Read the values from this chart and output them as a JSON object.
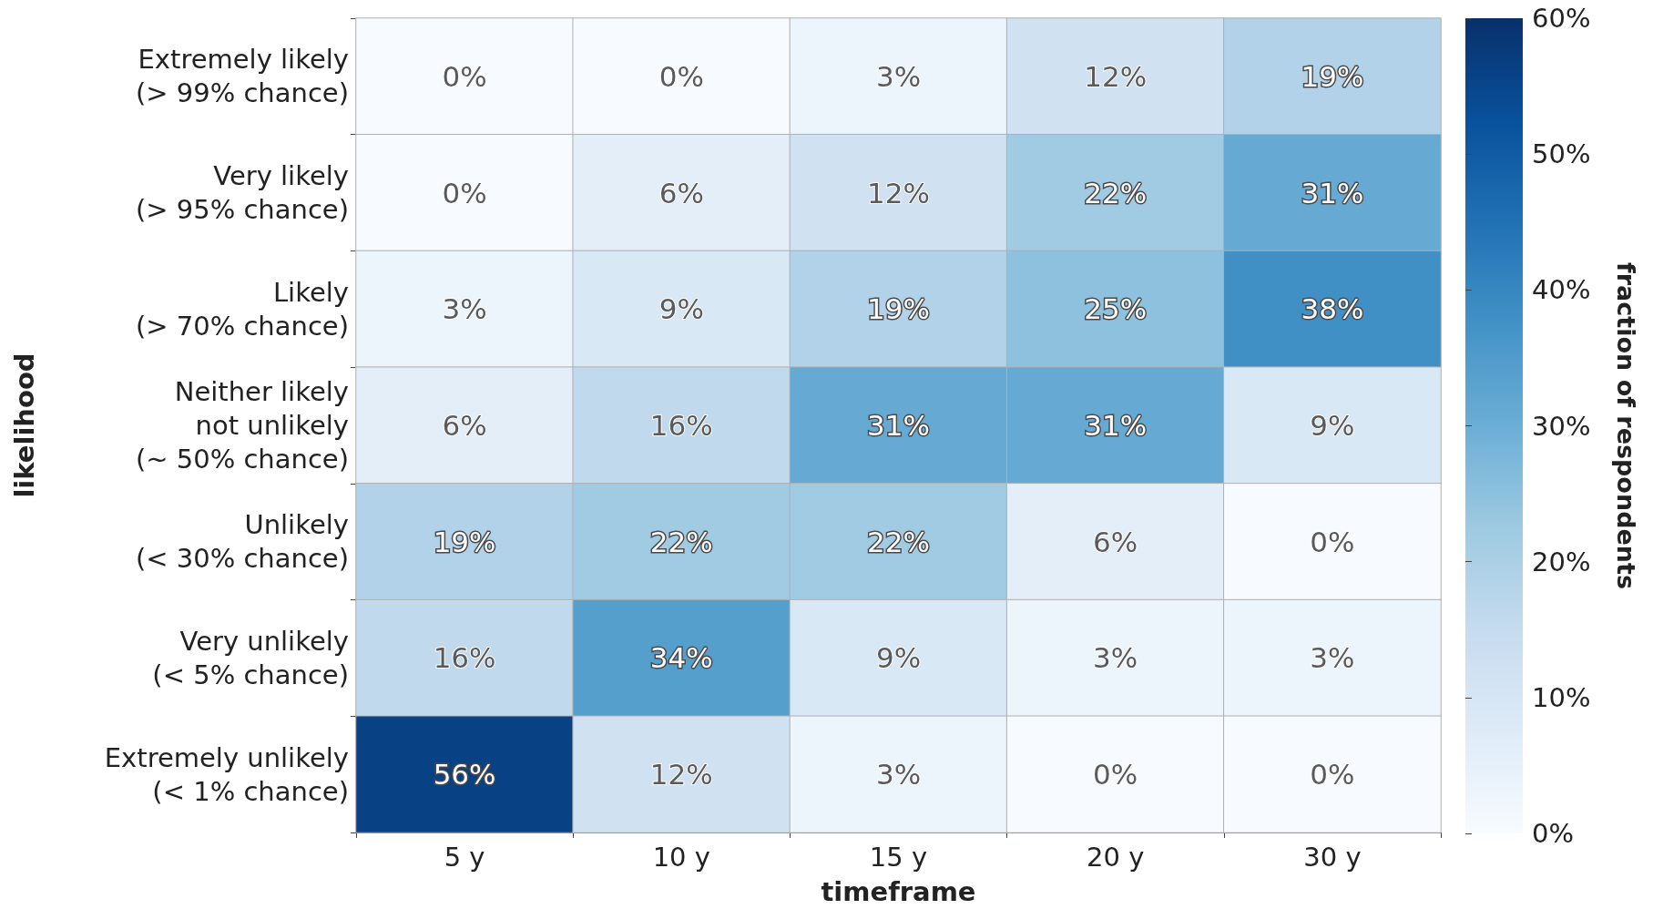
{
  "chart_data": {
    "type": "heatmap",
    "xlabel": "timeframe",
    "ylabel": "likelihood",
    "clabel": "fraction of respondents",
    "categories": [
      "5 y",
      "10 y",
      "15 y",
      "20 y",
      "30 y"
    ],
    "y_categories": [
      "Extremely likely\n(> 99% chance)",
      "Very likely\n(> 95% chance)",
      "Likely\n(> 70% chance)",
      "Neither likely\nnot unlikely\n(~ 50% chance)",
      "Unlikely\n(< 30% chance)",
      "Very unlikely\n(< 5% chance)",
      "Extremely unlikely\n(< 1% chance)"
    ],
    "cells": [
      [
        0,
        0,
        3,
        12,
        19
      ],
      [
        0,
        6,
        12,
        22,
        31
      ],
      [
        3,
        9,
        19,
        25,
        38
      ],
      [
        6,
        16,
        31,
        31,
        9
      ],
      [
        19,
        22,
        22,
        6,
        0
      ],
      [
        16,
        34,
        9,
        3,
        3
      ],
      [
        56,
        12,
        3,
        0,
        0
      ]
    ],
    "cell_labels": [
      [
        "0%",
        "0%",
        "3%",
        "12%",
        "19%"
      ],
      [
        "0%",
        "6%",
        "12%",
        "22%",
        "31%"
      ],
      [
        "3%",
        "9%",
        "19%",
        "25%",
        "38%"
      ],
      [
        "6%",
        "16%",
        "31%",
        "31%",
        "9%"
      ],
      [
        "19%",
        "22%",
        "22%",
        "6%",
        "0%"
      ],
      [
        "16%",
        "34%",
        "9%",
        "3%",
        "3%"
      ],
      [
        "56%",
        "12%",
        "3%",
        "0%",
        "0%"
      ]
    ],
    "clim": [
      0,
      60
    ],
    "cticks": [
      {
        "value": 0,
        "label": "0%"
      },
      {
        "value": 10,
        "label": "10%"
      },
      {
        "value": 20,
        "label": "20%"
      },
      {
        "value": 30,
        "label": "30%"
      },
      {
        "value": 40,
        "label": "40%"
      },
      {
        "value": 50,
        "label": "50%"
      },
      {
        "value": 60,
        "label": "60%"
      }
    ]
  }
}
